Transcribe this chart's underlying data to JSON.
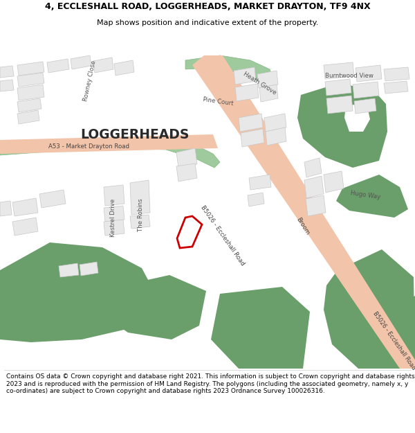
{
  "title": "4, ECCLESHALL ROAD, LOGGERHEADS, MARKET DRAYTON, TF9 4NX",
  "subtitle": "Map shows position and indicative extent of the property.",
  "footer": "Contains OS data © Crown copyright and database right 2021. This information is subject to Crown copyright and database rights 2023 and is reproduced with the permission of HM Land Registry. The polygons (including the associated geometry, namely x, y co-ordinates) are subject to Crown copyright and database rights 2023 Ordnance Survey 100026316.",
  "map_bg": "#ffffff",
  "green": "#6a9e6a",
  "green_light": "#a8cca8",
  "road_salmon": "#f2c4aa",
  "building_fill": "#e8e8e8",
  "building_edge": "#c8c8c8",
  "plot_red": "#cc0000",
  "text_dark": "#2a2a2a",
  "text_mid": "#555555",
  "road_label": "#444444"
}
